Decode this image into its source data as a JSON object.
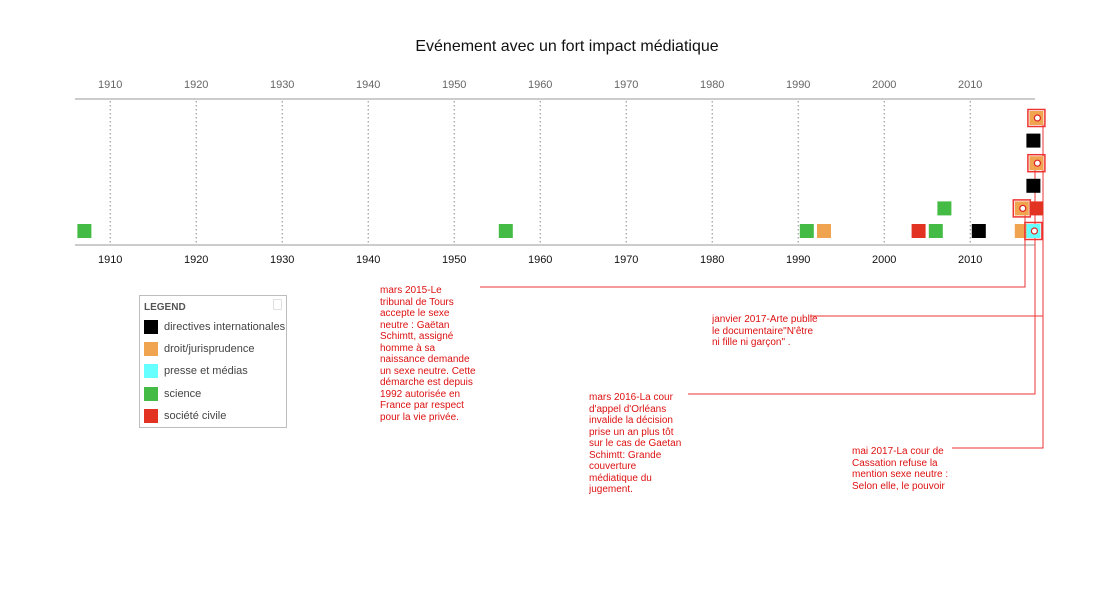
{
  "chart_data": {
    "type": "timeline",
    "title": "Evénement avec un fort impact médiatique",
    "xlim": [
      1906,
      2018
    ],
    "ticks": [
      1910,
      1920,
      1930,
      1940,
      1950,
      1960,
      1970,
      1980,
      1990,
      2000,
      2010
    ],
    "grid": true,
    "legend_position": "bottom-left",
    "legend": {
      "title": "LEGEND",
      "items": [
        {
          "key": "directives",
          "label": "directives internationales",
          "color": "#000000"
        },
        {
          "key": "droit",
          "label": "droit/jurisprudence",
          "color": "#f0a450"
        },
        {
          "key": "presse",
          "label": "presse et médias",
          "color": "#66ffff"
        },
        {
          "key": "science",
          "label": "science",
          "color": "#44bb44"
        },
        {
          "key": "societe",
          "label": "société civile",
          "color": "#e23322"
        }
      ]
    },
    "events": [
      {
        "year": 1907,
        "category": "science",
        "row": 0
      },
      {
        "year": 1956,
        "category": "science",
        "row": 0
      },
      {
        "year": 1991,
        "category": "science",
        "row": 0
      },
      {
        "year": 1993,
        "category": "droit",
        "row": 0
      },
      {
        "year": 2004,
        "category": "societe",
        "row": 0
      },
      {
        "year": 2006,
        "category": "science",
        "row": 0
      },
      {
        "year": 2007,
        "category": "science",
        "row": 1
      },
      {
        "year": 2011,
        "category": "directives",
        "row": 0
      },
      {
        "year": 2016,
        "category": "droit",
        "row": 0
      },
      {
        "year": 2016,
        "category": "droit",
        "row": 1,
        "highlight": true
      },
      {
        "year": 2017,
        "category": "presse",
        "row": 0,
        "highlight": true
      },
      {
        "year": 2017,
        "category": "societe",
        "row": 1
      },
      {
        "year": 2017,
        "category": "directives",
        "row": 2
      },
      {
        "year": 2017,
        "category": "droit",
        "row": 3,
        "highlight": true
      },
      {
        "year": 2017,
        "category": "directives",
        "row": 4
      },
      {
        "year": 2017,
        "category": "droit",
        "row": 5,
        "highlight": true
      }
    ],
    "annotations": [
      {
        "date": "mars 2015",
        "text": "mars 2015-Le tribunal de Tours accepte le sexe neutre : Gaëtan Schimtt, assigné homme à sa naissance demande un sexe neutre. Cette démarche est depuis 1992 autorisée en France par respect pour la vie privée."
      },
      {
        "date": "janvier 2017",
        "text": "janvier 2017-Arte publie le documentaire\"N'être ni fille ni garçon\" ."
      },
      {
        "date": "mars 2016",
        "text": "mars 2016-La cour d'appel d'Orléans invalide la décision prise un an plus tôt sur le cas de Gaetan Schimtt: Grande couverture médiatique du jugement."
      },
      {
        "date": "mai 2017",
        "text": "mai 2017-La cour de Cassation refuse la mention sexe neutre : Selon elle, le pouvoir"
      }
    ]
  }
}
